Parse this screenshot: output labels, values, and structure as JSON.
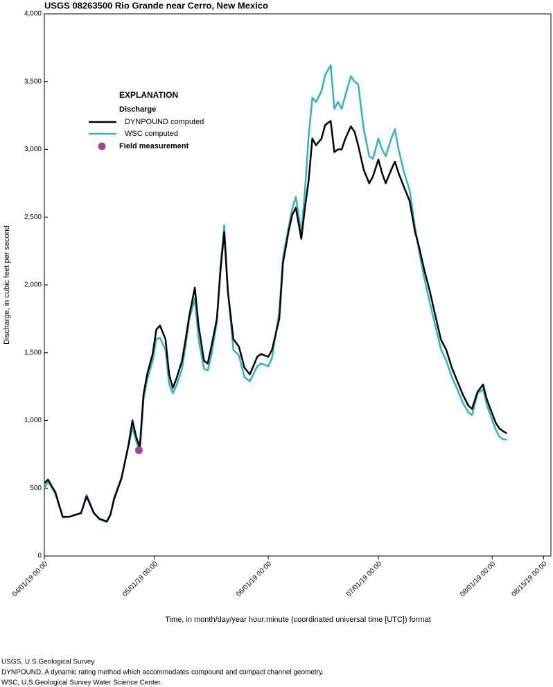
{
  "chart_data": {
    "type": "line",
    "title": "USGS 08263500 Rio Grande near Cerro, New Mexico",
    "x_label": "Time, in month/day/year hour:minute (coordinated universal time [UTC]) format",
    "y_label": "Discharge, in cubic feet per second",
    "legend_title": "EXPLANATION",
    "legend_subtitle": "Discharge",
    "footnotes": [
      "USGS, U.S.Geological Survey",
      "DYNPOUND, A dynamic rating method which accommodates compound and compact channel geometry.",
      "WSC, U.S.Geological Survey Water Science Center."
    ],
    "xlim": [
      "04/01/19 00:00",
      "08/17/19 00:00"
    ],
    "xticks": [
      "04/01/19 00:00",
      "05/01/19 00:00",
      "06/01/19 00:00",
      "07/01/19 00:00",
      "08/01/19 00:00",
      "08/15/19 00:00"
    ],
    "ylim": [
      0,
      4000
    ],
    "yticks": [
      0,
      500,
      {
        "value": 1000,
        "label": "1,000"
      },
      {
        "value": 1500,
        "label": "1,500"
      },
      {
        "value": 2000,
        "label": "2,000"
      },
      {
        "value": 2500,
        "label": "2,500"
      },
      {
        "value": 3000,
        "label": "3,000"
      },
      {
        "value": 3500,
        "label": "3,500"
      },
      {
        "value": 4000,
        "label": "4,000"
      }
    ],
    "x": [
      "04/01/19 00:00",
      "04/02/19 00:00",
      "04/04/19 00:00",
      "04/06/19 00:00",
      "04/08/19 00:00",
      "04/09/19 00:00",
      "04/11/19 00:00",
      "04/12/19 12:00",
      "04/14/19 12:00",
      "04/16/19 00:00",
      "04/18/19 00:00",
      "04/19/19 00:00",
      "04/20/19 00:00",
      "04/22/19 00:00",
      "04/24/19 00:00",
      "04/25/19 00:00",
      "04/26/19 00:00",
      "04/27/19 00:00",
      "04/28/19 00:00",
      "04/29/19 00:00",
      "04/30/19 12:00",
      "05/01/19 12:00",
      "05/02/19 12:00",
      "05/04/19 00:00",
      "05/05/19 00:00",
      "05/06/19 00:00",
      "05/07/19 00:00",
      "05/08/19 12:00",
      "05/09/19 12:00",
      "05/10/19 12:00",
      "05/12/19 00:00",
      "05/13/19 00:00",
      "05/14/19 12:00",
      "05/15/19 12:00",
      "05/16/19 12:00",
      "05/18/19 00:00",
      "05/19/19 00:00",
      "05/20/19 00:00",
      "05/21/19 00:00",
      "05/22/19 12:00",
      "05/24/19 00:00",
      "05/25/19 12:00",
      "05/27/19 00:00",
      "05/29/19 00:00",
      "05/30/19 00:00",
      "06/01/19 00:00",
      "06/02/19 00:00",
      "06/04/19 00:00",
      "06/05/19 00:00",
      "06/06/19 12:00",
      "06/07/19 12:00",
      "06/08/19 12:00",
      "06/10/19 00:00",
      "06/11/19 00:00",
      "06/12/19 00:00",
      "06/13/19 00:00",
      "06/14/19 00:00",
      "06/15/19 12:00",
      "06/16/19 12:00",
      "06/18/19 00:00",
      "06/19/19 00:00",
      "06/20/19 00:00",
      "06/21/19 00:00",
      "06/22/19 00:00",
      "06/23/19 12:00",
      "06/24/19 12:00",
      "06/25/19 12:00",
      "06/27/19 00:00",
      "06/28/19 12:00",
      "06/29/19 12:00",
      "07/01/19 00:00",
      "07/02/19 00:00",
      "07/03/19 00:00",
      "07/04/19 12:00",
      "07/05/19 12:00",
      "07/06/19 12:00",
      "07/08/19 00:00",
      "07/09/19 12:00",
      "07/11/19 00:00",
      "07/12/19 00:00",
      "07/13/19 12:00",
      "07/15/19 00:00",
      "07/16/19 12:00",
      "07/18/19 00:00",
      "07/19/19 12:00",
      "07/21/19 00:00",
      "07/22/19 12:00",
      "07/24/19 00:00",
      "07/25/19 12:00",
      "07/26/19 12:00",
      "07/28/19 00:00",
      "07/29/19 12:00",
      "07/30/19 12:00",
      "07/31/19 12:00",
      "08/02/19 00:00",
      "08/03/19 00:00",
      "08/04/19 00:00",
      "08/05/19 00:00"
    ],
    "series": [
      {
        "name": "WSC computed",
        "color": "#2ab7bd",
        "style": "line",
        "values": [
          500,
          550,
          460,
          285,
          290,
          300,
          320,
          450,
          320,
          270,
          250,
          300,
          430,
          580,
          820,
          950,
          850,
          770,
          1150,
          1300,
          1440,
          1600,
          1610,
          1520,
          1270,
          1200,
          1260,
          1380,
          1560,
          1750,
          1900,
          1600,
          1380,
          1370,
          1480,
          1730,
          2150,
          2440,
          1950,
          1520,
          1480,
          1320,
          1290,
          1400,
          1420,
          1400,
          1460,
          1800,
          2200,
          2420,
          2560,
          2650,
          2380,
          2700,
          3100,
          3380,
          3350,
          3430,
          3550,
          3620,
          3300,
          3350,
          3300,
          3400,
          3540,
          3500,
          3480,
          3150,
          2950,
          2930,
          3080,
          3000,
          2950,
          3080,
          3150,
          3000,
          2830,
          2700,
          2420,
          2260,
          2050,
          1870,
          1700,
          1530,
          1440,
          1320,
          1230,
          1130,
          1060,
          1040,
          1200,
          1230,
          1120,
          1040,
          930,
          880,
          860,
          860
        ]
      },
      {
        "name": "DYNPOUND computed",
        "color": "#000000",
        "style": "line",
        "values": [
          537,
          563,
          470,
          290,
          290,
          300,
          315,
          440,
          315,
          275,
          255,
          305,
          420,
          570,
          830,
          1000,
          880,
          800,
          1190,
          1340,
          1490,
          1670,
          1700,
          1600,
          1340,
          1240,
          1310,
          1440,
          1600,
          1775,
          1980,
          1700,
          1440,
          1420,
          1545,
          1750,
          2110,
          2390,
          1950,
          1600,
          1545,
          1390,
          1340,
          1470,
          1490,
          1470,
          1520,
          1750,
          2160,
          2390,
          2515,
          2570,
          2340,
          2570,
          2770,
          3080,
          3030,
          3080,
          3180,
          3210,
          2980,
          3000,
          3000,
          3080,
          3170,
          3130,
          3030,
          2850,
          2750,
          2800,
          2925,
          2825,
          2750,
          2850,
          2910,
          2825,
          2720,
          2620,
          2390,
          2290,
          2110,
          1955,
          1775,
          1600,
          1520,
          1390,
          1290,
          1190,
          1110,
          1085,
          1210,
          1265,
          1160,
          1085,
          980,
          940,
          920,
          905
        ]
      },
      {
        "name": "Field measurement",
        "color": "#a4449c",
        "style": "marker",
        "x": [
          "04/26/19 18:00"
        ],
        "values": [
          780
        ]
      }
    ]
  }
}
